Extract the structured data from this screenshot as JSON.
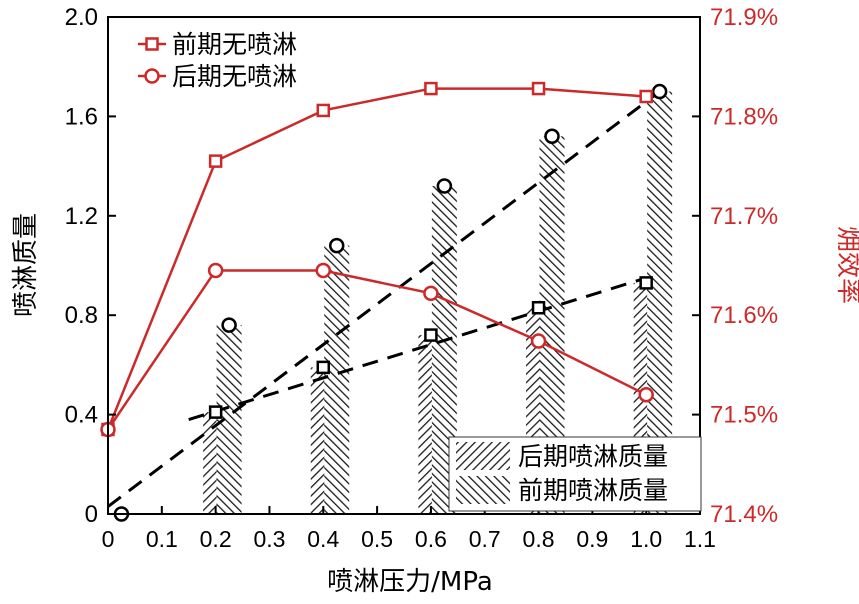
{
  "chart_data": {
    "type": "bar",
    "xlabel": "喷淋压力/MPa",
    "ylabel_left": "喷淋质量",
    "ylabel_right": "㶲效率",
    "x_ticks": [
      "0",
      "0.1",
      "0.2",
      "0.3",
      "0.4",
      "0.5",
      "0.6",
      "0.7",
      "0.8",
      "0.9",
      "1.0",
      "1.1"
    ],
    "xlim": [
      0,
      1.1
    ],
    "ylim_left": [
      0,
      2.0
    ],
    "y_ticks_left": [
      "0",
      "0.4",
      "0.8",
      "1.2",
      "1.6",
      "2.0"
    ],
    "ylim_right": [
      71.4,
      71.9
    ],
    "y_ticks_right": [
      "71.4%",
      "71.5%",
      "71.6%",
      "71.7%",
      "71.8%",
      "71.9%"
    ],
    "colors": {
      "axis": "#000000",
      "red": "#cc2a2a",
      "black": "#000000"
    },
    "bars": [
      {
        "name": "后期喷淋质量",
        "hatch": "back",
        "x": [
          0.2,
          0.4,
          0.6,
          0.8,
          1.0
        ],
        "values": [
          0.41,
          0.59,
          0.72,
          0.83,
          0.93
        ]
      },
      {
        "name": "前期喷淋质量",
        "hatch": "forward",
        "x": [
          0.225,
          0.425,
          0.625,
          0.825,
          1.025
        ],
        "values": [
          0.76,
          1.08,
          1.32,
          1.52,
          1.7
        ]
      }
    ],
    "mass_lines": [
      {
        "marker": "square",
        "x": [
          0.2,
          0.4,
          0.6,
          0.8,
          1.0
        ],
        "values": [
          0.41,
          0.59,
          0.72,
          0.83,
          0.93
        ],
        "trend_x": [
          0.15,
          1.0
        ],
        "trend_y": [
          0.38,
          0.95
        ]
      },
      {
        "marker": "circle",
        "x": [
          0.025,
          0.225,
          0.425,
          0.625,
          0.825,
          1.025
        ],
        "values": [
          0.0,
          0.76,
          1.08,
          1.32,
          1.52,
          1.7
        ],
        "trend_x": [
          0.0,
          1.025
        ],
        "trend_y": [
          0.03,
          1.7
        ]
      }
    ],
    "efficiency_series": [
      {
        "name": "前期无喷淋",
        "marker": "square",
        "x": [
          0,
          0.2,
          0.4,
          0.6,
          0.8,
          1.0
        ],
        "values": [
          71.485,
          71.755,
          71.806,
          71.828,
          71.828,
          71.82
        ]
      },
      {
        "name": "后期无喷淋",
        "marker": "circle",
        "x": [
          0,
          0.2,
          0.4,
          0.6,
          0.8,
          1.0
        ],
        "values": [
          71.485,
          71.645,
          71.645,
          71.622,
          71.574,
          71.52
        ]
      }
    ]
  }
}
